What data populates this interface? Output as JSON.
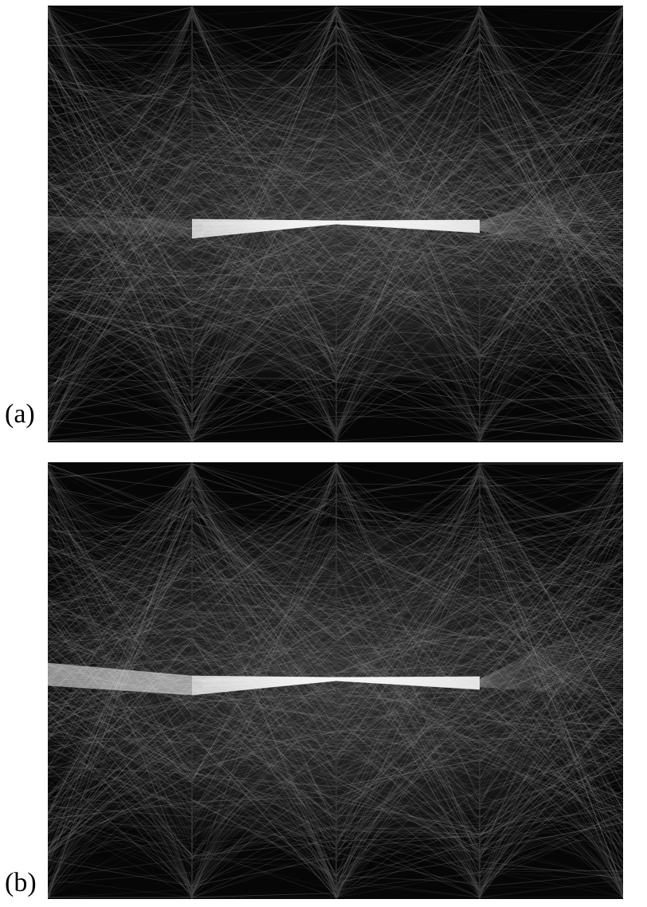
{
  "figure": {
    "panels": [
      {
        "id": "a",
        "label": "(a)",
        "axes_count": 4,
        "highlight": {
          "segments": [
            [
              1,
              2
            ],
            [
              2,
              3
            ]
          ],
          "brightness": "high"
        },
        "incoming_band_axis": 0,
        "outgoing_fan_axis": 3
      },
      {
        "id": "b",
        "label": "(b)",
        "axes_count": 4,
        "highlight": {
          "segments": [
            [
              0,
              1
            ],
            [
              1,
              2
            ],
            [
              2,
              3
            ]
          ],
          "brightness": "high"
        },
        "incoming_band_axis": 0,
        "outgoing_fan_axis": 3
      }
    ],
    "colors": {
      "background": "#060606",
      "context_lines": "#8c8c8c",
      "highlight_lines": "#f4f4f4",
      "axes": "#3a3a3a"
    }
  }
}
